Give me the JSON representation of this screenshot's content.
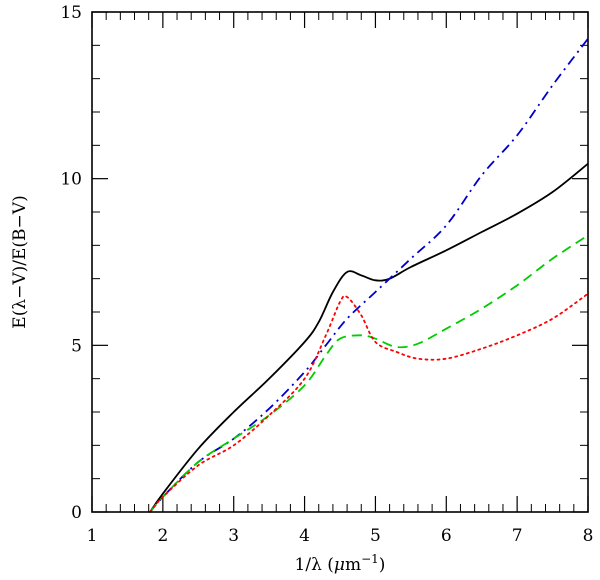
{
  "chart_data": {
    "type": "line",
    "title": "",
    "xlabel": "1/λ  (μm⁻¹)",
    "xlabel_parts": {
      "main": "1/λ  (",
      "mu": "μ",
      "unit": "m",
      "sup": "−1",
      "close": ")"
    },
    "ylabel": "E(λ−V)/E(B−V)",
    "xlim": [
      1,
      8
    ],
    "ylim": [
      0,
      15
    ],
    "xticks_major": [
      1,
      2,
      3,
      4,
      5,
      6,
      7,
      8
    ],
    "xtick_labels": [
      "1",
      "2",
      "3",
      "4",
      "5",
      "6",
      "7",
      "8"
    ],
    "yticks_major": [
      0,
      5,
      10,
      15
    ],
    "ytick_labels": [
      "0",
      "5",
      "10",
      "15"
    ],
    "x_minor_step": 0.2,
    "y_minor_step": 1,
    "grid": false,
    "legend": "none",
    "series": [
      {
        "name": "solid",
        "color": "#000000",
        "dash": "solid",
        "points": [
          [
            1.82,
            0.0
          ],
          [
            2.0,
            0.55
          ],
          [
            2.5,
            1.9
          ],
          [
            3.0,
            3.0
          ],
          [
            3.5,
            4.0
          ],
          [
            4.0,
            5.1
          ],
          [
            4.2,
            5.7
          ],
          [
            4.4,
            6.6
          ],
          [
            4.6,
            7.2
          ],
          [
            4.8,
            7.1
          ],
          [
            5.0,
            6.95
          ],
          [
            5.2,
            7.0
          ],
          [
            5.5,
            7.35
          ],
          [
            6.0,
            7.85
          ],
          [
            6.5,
            8.4
          ],
          [
            7.0,
            8.95
          ],
          [
            7.5,
            9.6
          ],
          [
            8.0,
            10.45
          ]
        ]
      },
      {
        "name": "dash-dot",
        "color": "#0000cc",
        "dash": "dashdot",
        "points": [
          [
            1.82,
            0.0
          ],
          [
            2.0,
            0.45
          ],
          [
            2.5,
            1.5
          ],
          [
            3.0,
            2.2
          ],
          [
            3.5,
            3.1
          ],
          [
            4.0,
            4.2
          ],
          [
            4.3,
            5.0
          ],
          [
            4.6,
            5.8
          ],
          [
            5.0,
            6.6
          ],
          [
            5.5,
            7.6
          ],
          [
            6.0,
            8.6
          ],
          [
            6.5,
            10.1
          ],
          [
            7.0,
            11.3
          ],
          [
            7.5,
            12.8
          ],
          [
            8.0,
            14.2
          ]
        ]
      },
      {
        "name": "dashed",
        "color": "#00cc00",
        "dash": "dashed",
        "points": [
          [
            1.82,
            0.0
          ],
          [
            2.0,
            0.45
          ],
          [
            2.5,
            1.5
          ],
          [
            3.0,
            2.2
          ],
          [
            3.5,
            2.9
          ],
          [
            4.0,
            3.8
          ],
          [
            4.3,
            4.7
          ],
          [
            4.5,
            5.2
          ],
          [
            4.8,
            5.3
          ],
          [
            5.0,
            5.2
          ],
          [
            5.3,
            4.95
          ],
          [
            5.6,
            5.05
          ],
          [
            6.0,
            5.5
          ],
          [
            6.5,
            6.1
          ],
          [
            7.0,
            6.8
          ],
          [
            7.5,
            7.6
          ],
          [
            8.0,
            8.3
          ]
        ]
      },
      {
        "name": "dotted",
        "color": "#ff0000",
        "dash": "dotted",
        "points": [
          [
            1.82,
            0.0
          ],
          [
            2.0,
            0.45
          ],
          [
            2.5,
            1.4
          ],
          [
            3.0,
            2.0
          ],
          [
            3.5,
            2.9
          ],
          [
            4.0,
            4.0
          ],
          [
            4.3,
            5.3
          ],
          [
            4.5,
            6.3
          ],
          [
            4.6,
            6.45
          ],
          [
            4.8,
            5.9
          ],
          [
            5.0,
            5.1
          ],
          [
            5.3,
            4.8
          ],
          [
            5.6,
            4.6
          ],
          [
            6.0,
            4.6
          ],
          [
            6.5,
            4.9
          ],
          [
            7.0,
            5.3
          ],
          [
            7.5,
            5.8
          ],
          [
            8.0,
            6.55
          ]
        ]
      }
    ]
  }
}
